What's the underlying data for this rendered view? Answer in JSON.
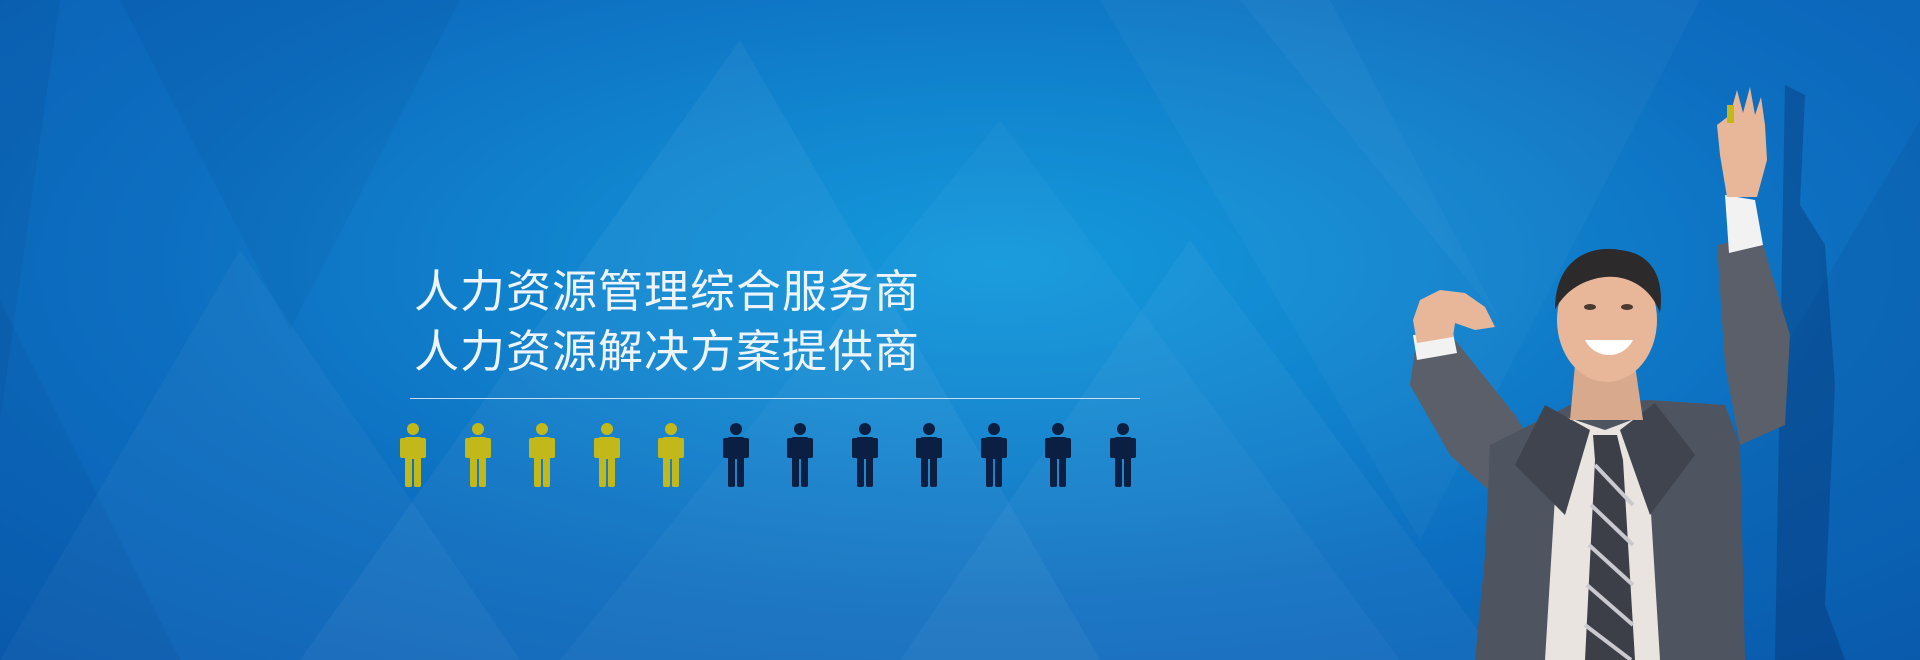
{
  "banner": {
    "headline_line1": "人力资源管理综合服务商",
    "headline_line2": "人力资源解决方案提供商"
  },
  "people_icons": {
    "count": 12,
    "highlighted": 5,
    "highlight_color": "#c2b81a",
    "default_color": "#0b1f42"
  },
  "colors": {
    "background_center": "#1499dc",
    "background_edge": "#0a5db3",
    "text": "#eef4fb"
  }
}
